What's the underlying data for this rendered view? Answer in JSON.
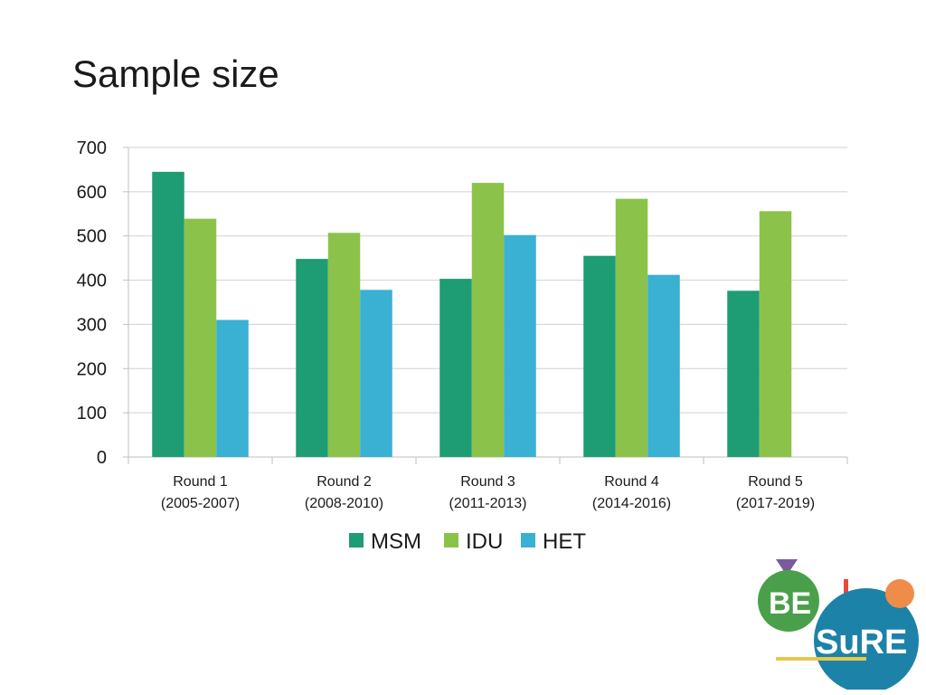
{
  "slide": {
    "title": "Sample size"
  },
  "chart_data": {
    "type": "bar",
    "categories": [
      [
        "Round 1",
        "(2005-2007)"
      ],
      [
        "Round 2",
        "(2008-2010)"
      ],
      [
        "Round 3",
        "(2011-2013)"
      ],
      [
        "Round 4",
        "(2014-2016)"
      ],
      [
        "Round 5",
        "(2017-2019)"
      ]
    ],
    "series": [
      {
        "name": "MSM",
        "color": "#1e9c74",
        "values": [
          645,
          448,
          403,
          455,
          376
        ]
      },
      {
        "name": "IDU",
        "color": "#8bc34a",
        "values": [
          539,
          507,
          620,
          584,
          556
        ]
      },
      {
        "name": "HET",
        "color": "#3ab0d2",
        "values": [
          310,
          378,
          502,
          412,
          null
        ]
      }
    ],
    "ylim": [
      0,
      700
    ],
    "yticks": [
      0,
      100,
      200,
      300,
      400,
      500,
      600,
      700
    ],
    "grid": true,
    "legend": "bottom",
    "xlabel": "",
    "ylabel": ""
  },
  "logo": {
    "line1": "BE",
    "line2": "SuRE",
    "colors": {
      "be": "#4aa04a",
      "sure": "#1d82a8",
      "dot": "#ef8c4a",
      "triangle": "#7a5a9e",
      "bar": "#e8c74a"
    }
  }
}
